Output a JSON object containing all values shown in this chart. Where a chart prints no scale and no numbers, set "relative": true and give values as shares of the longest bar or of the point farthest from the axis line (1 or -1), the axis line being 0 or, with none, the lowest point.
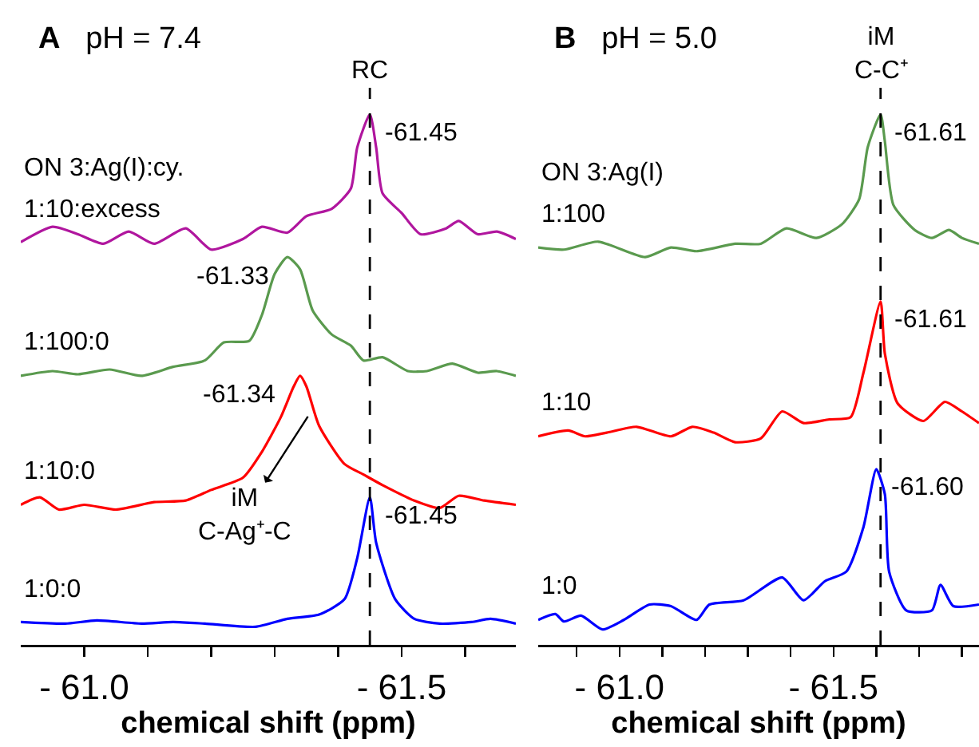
{
  "chart_data": [
    {
      "type": "line",
      "title": "pH = 7.4",
      "xlabel": "chemical shift (ppm)",
      "legend_title": "ON 3:Ag(I):cy.",
      "relative": true,
      "legend": false,
      "grid": false,
      "tick_labels": "x",
      "xlim": [
        -60.9,
        -61.68
      ],
      "xticks": [
        {
          "value": -61.0,
          "label": "- 61.0"
        },
        {
          "value": -61.1,
          "label": null
        },
        {
          "value": -61.2,
          "label": null
        },
        {
          "value": -61.3,
          "label": null
        },
        {
          "value": -61.4,
          "label": null
        },
        {
          "value": -61.5,
          "label": "- 61.5"
        },
        {
          "value": -61.6,
          "label": null
        }
      ],
      "ref_lines": [
        {
          "axis": "x",
          "value": -61.45,
          "line_style": "dashed",
          "color": "#000000"
        }
      ],
      "annotations": [
        "A",
        "RC",
        {
          "text": "-61.45",
          "x": -61.45,
          "y": 1.0
        },
        {
          "text": "-61.33",
          "x": -61.33,
          "y": 0.731
        },
        {
          "text": "-61.34",
          "x": -61.34,
          "y": 0.507
        },
        "iM\nC-Ag⁺-C",
        {
          "text": "-61.45",
          "x": -61.45,
          "y": 0.278
        }
      ],
      "series": [
        {
          "name": "1:10:excess",
          "color": "#b0169e",
          "x": [
            -60.9,
            -60.95,
            -60.99,
            -61.03,
            -61.07,
            -61.11,
            -61.16,
            -61.2,
            -61.25,
            -61.28,
            -61.32,
            -61.35,
            -61.39,
            -61.42,
            -61.43,
            -61.45,
            -61.46,
            -61.47,
            -61.5,
            -61.53,
            -61.57,
            -61.59,
            -61.62,
            -61.65,
            -61.68
          ],
          "values": [
            0.759,
            0.788,
            0.774,
            0.756,
            0.779,
            0.756,
            0.785,
            0.745,
            0.765,
            0.788,
            0.777,
            0.808,
            0.822,
            0.86,
            0.937,
            1.0,
            0.937,
            0.851,
            0.814,
            0.774,
            0.785,
            0.799,
            0.774,
            0.779,
            0.765
          ]
        },
        {
          "name": "1:100:0",
          "color": "#5a9a4e",
          "x": [
            -60.9,
            -60.95,
            -60.99,
            -61.04,
            -61.09,
            -61.14,
            -61.19,
            -61.22,
            -61.26,
            -61.28,
            -61.3,
            -61.32,
            -61.34,
            -61.36,
            -61.39,
            -61.42,
            -61.44,
            -61.47,
            -61.51,
            -61.54,
            -61.58,
            -61.62,
            -61.65,
            -61.68
          ],
          "values": [
            0.507,
            0.516,
            0.51,
            0.519,
            0.507,
            0.524,
            0.536,
            0.57,
            0.573,
            0.622,
            0.699,
            0.731,
            0.708,
            0.63,
            0.585,
            0.564,
            0.536,
            0.542,
            0.516,
            0.516,
            0.53,
            0.513,
            0.516,
            0.507
          ]
        },
        {
          "name": "1:10:0",
          "color": "#ff0000",
          "x": [
            -60.9,
            -60.93,
            -60.96,
            -61.0,
            -61.05,
            -61.11,
            -61.16,
            -61.2,
            -61.25,
            -61.28,
            -61.31,
            -61.33,
            -61.34,
            -61.35,
            -61.37,
            -61.41,
            -61.44,
            -61.47,
            -61.52,
            -61.56,
            -61.59,
            -61.63,
            -61.68
          ],
          "values": [
            0.264,
            0.278,
            0.255,
            0.264,
            0.255,
            0.269,
            0.272,
            0.292,
            0.315,
            0.364,
            0.43,
            0.487,
            0.507,
            0.487,
            0.413,
            0.341,
            0.321,
            0.301,
            0.272,
            0.258,
            0.281,
            0.272,
            0.264
          ]
        },
        {
          "name": "1:0:0",
          "color": "#0000ff",
          "x": [
            -60.9,
            -60.97,
            -61.02,
            -61.09,
            -61.14,
            -61.19,
            -61.27,
            -61.32,
            -61.37,
            -61.41,
            -61.43,
            -61.45,
            -61.46,
            -61.49,
            -61.52,
            -61.56,
            -61.61,
            -61.64,
            -61.68
          ],
          "values": [
            0.043,
            0.04,
            0.046,
            0.04,
            0.043,
            0.04,
            0.034,
            0.049,
            0.057,
            0.086,
            0.163,
            0.278,
            0.192,
            0.086,
            0.049,
            0.04,
            0.043,
            0.049,
            0.04
          ]
        }
      ]
    },
    {
      "type": "line",
      "title": "pH = 5.0",
      "xlabel": "chemical shift (ppm)",
      "legend_title": "ON 3:Ag(I)",
      "relative": true,
      "legend": false,
      "grid": false,
      "tick_labels": "x",
      "xlim": [
        -60.81,
        -61.84
      ],
      "xticks": [
        {
          "value": -60.9,
          "label": null
        },
        {
          "value": -61.0,
          "label": "- 61.0"
        },
        {
          "value": -61.1,
          "label": null
        },
        {
          "value": -61.2,
          "label": null
        },
        {
          "value": -61.3,
          "label": null
        },
        {
          "value": -61.4,
          "label": null
        },
        {
          "value": -61.5,
          "label": "- 61.5"
        },
        {
          "value": -61.6,
          "label": null
        },
        {
          "value": -61.7,
          "label": null
        },
        {
          "value": -61.8,
          "label": null
        }
      ],
      "ref_lines": [
        {
          "axis": "x",
          "value": -61.61,
          "line_style": "dashed",
          "color": "#000000"
        }
      ],
      "annotations": [
        "B",
        "iM\nC-C⁺",
        {
          "text": "-61.61",
          "x": -61.61,
          "y": 1.0
        },
        {
          "text": "-61.61",
          "x": -61.61,
          "y": 0.647
        },
        {
          "text": "-61.60",
          "x": -61.6,
          "y": 0.331
        }
      ],
      "series": [
        {
          "name": "1:100",
          "color": "#5a9a4e",
          "x": [
            -60.81,
            -60.87,
            -60.95,
            -61.06,
            -61.12,
            -61.18,
            -61.27,
            -61.33,
            -61.39,
            -61.46,
            -61.52,
            -61.56,
            -61.58,
            -61.61,
            -61.62,
            -61.64,
            -61.69,
            -61.73,
            -61.77,
            -61.8,
            -61.84
          ],
          "values": [
            0.749,
            0.745,
            0.76,
            0.731,
            0.749,
            0.742,
            0.756,
            0.756,
            0.785,
            0.767,
            0.793,
            0.84,
            0.938,
            1.0,
            0.949,
            0.829,
            0.782,
            0.767,
            0.782,
            0.767,
            0.756
          ]
        },
        {
          "name": "1:10",
          "color": "#ff0000",
          "x": [
            -60.81,
            -60.88,
            -60.92,
            -60.97,
            -61.04,
            -61.12,
            -61.17,
            -61.22,
            -61.27,
            -61.33,
            -61.38,
            -61.43,
            -61.49,
            -61.54,
            -61.57,
            -61.61,
            -61.62,
            -61.65,
            -61.71,
            -61.76,
            -61.8,
            -61.84
          ],
          "values": [
            0.393,
            0.404,
            0.393,
            0.4,
            0.411,
            0.393,
            0.411,
            0.4,
            0.382,
            0.389,
            0.44,
            0.418,
            0.425,
            0.429,
            0.513,
            0.647,
            0.549,
            0.455,
            0.422,
            0.458,
            0.44,
            0.418
          ]
        },
        {
          "name": "1:0",
          "color": "#0000ff",
          "x": [
            -60.81,
            -60.85,
            -60.87,
            -60.91,
            -60.96,
            -61.01,
            -61.07,
            -61.12,
            -61.18,
            -61.21,
            -61.29,
            -61.38,
            -61.43,
            -61.48,
            -61.53,
            -61.57,
            -61.6,
            -61.62,
            -61.63,
            -61.67,
            -61.73,
            -61.75,
            -61.78,
            -61.84
          ],
          "values": [
            0.047,
            0.058,
            0.044,
            0.055,
            0.029,
            0.047,
            0.076,
            0.073,
            0.047,
            0.076,
            0.084,
            0.127,
            0.084,
            0.12,
            0.138,
            0.222,
            0.331,
            0.284,
            0.138,
            0.065,
            0.065,
            0.113,
            0.073,
            0.076
          ]
        }
      ]
    }
  ]
}
